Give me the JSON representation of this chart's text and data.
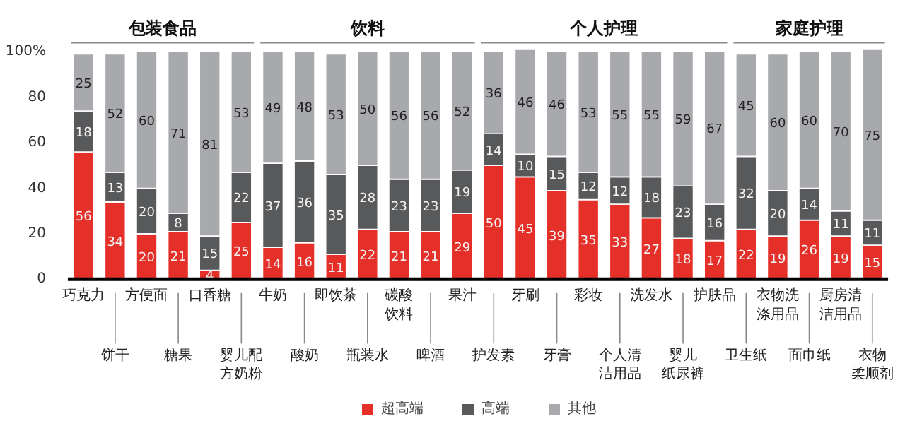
{
  "chart_data": {
    "type": "bar",
    "stacked": true,
    "data_labels": true,
    "legend": "bottom",
    "grid": false,
    "categories": [
      "巧克力",
      "饼干",
      "方便面",
      "糖果",
      "口香糖",
      "婴儿配方奶粉",
      "牛奶",
      "酸奶",
      "即饮茶",
      "瓶装水",
      "碳酸饮料",
      "啤酒",
      "果汁",
      "护发素",
      "牙刷",
      "牙膏",
      "彩妆",
      "个人清洁用品",
      "洗发水",
      "婴儿纸尿裤",
      "护肤品",
      "卫生纸",
      "衣物洗涤用品",
      "面巾纸",
      "厨房清洁用品",
      "衣物柔顺剂"
    ],
    "series": [
      {
        "name": "超高端",
        "color": "#e5302a",
        "values": [
          56,
          34,
          20,
          21,
          4,
          25,
          14,
          16,
          11,
          22,
          21,
          21,
          29,
          50,
          45,
          39,
          35,
          33,
          27,
          18,
          17,
          22,
          19,
          26,
          19,
          15
        ]
      },
      {
        "name": "高端",
        "color": "#58595b",
        "values": [
          18,
          13,
          20,
          8,
          15,
          22,
          37,
          36,
          35,
          28,
          23,
          23,
          19,
          14,
          10,
          15,
          12,
          12,
          18,
          23,
          16,
          32,
          20,
          14,
          11,
          11
        ]
      },
      {
        "name": "其他",
        "color": "#a7a9ac",
        "values": [
          25,
          52,
          60,
          71,
          81,
          53,
          49,
          48,
          53,
          50,
          56,
          56,
          52,
          36,
          46,
          46,
          53,
          55,
          55,
          59,
          67,
          45,
          60,
          60,
          70,
          75
        ]
      }
    ],
    "ylim": [
      0,
      101
    ],
    "yticks": [
      0,
      20,
      40,
      60,
      80,
      {
        "value": 100,
        "label": "100%"
      }
    ],
    "annotations": [
      "包装食品",
      "饮料",
      "个人护理",
      "家庭护理"
    ]
  }
}
